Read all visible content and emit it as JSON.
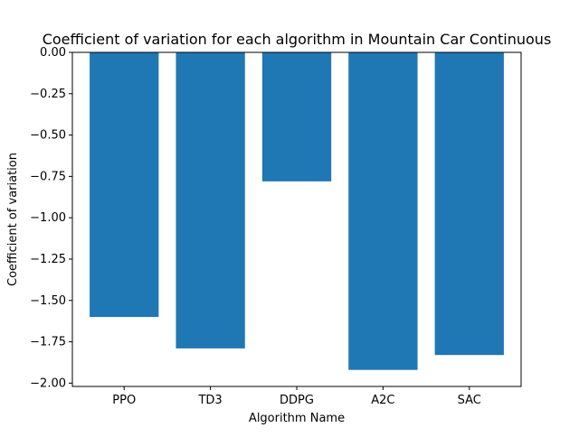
{
  "chart_data": {
    "type": "bar",
    "title": "Coefficient of variation for each algorithm in Mountain Car Continuous",
    "xlabel": "Algorithm Name",
    "ylabel": "Coefficient of variation",
    "categories": [
      "PPO",
      "TD3",
      "DDPG",
      "A2C",
      "SAC"
    ],
    "values": [
      -1.6,
      -1.79,
      -0.78,
      -1.92,
      -1.83
    ],
    "ylim": [
      -2.02,
      0.0
    ],
    "yticks": [
      0.0,
      -0.25,
      -0.5,
      -0.75,
      -1.0,
      -1.25,
      -1.5,
      -1.75,
      -2.0
    ],
    "ytick_labels": [
      "0.00",
      "−0.25",
      "−0.50",
      "−0.75",
      "−1.00",
      "−1.25",
      "−1.50",
      "−1.75",
      "−2.00"
    ],
    "grid": false,
    "bar_color": "#1f77b4"
  }
}
